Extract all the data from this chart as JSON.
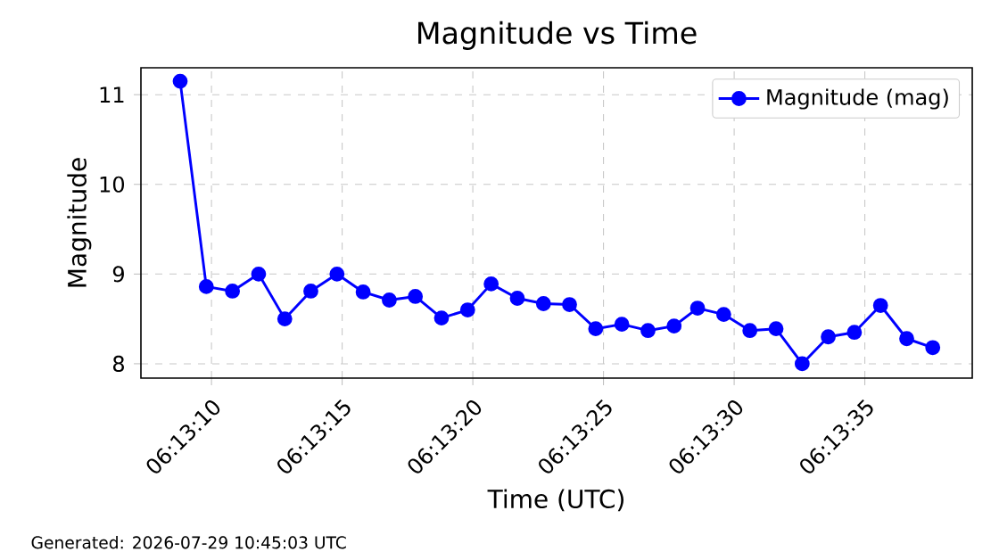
{
  "chart_data": {
    "type": "line",
    "title": "Magnitude vs Time",
    "xlabel": "Time (UTC)",
    "ylabel": "Magnitude",
    "x": [
      6.219111,
      6.219389,
      6.219667,
      6.219945,
      6.220223,
      6.2205,
      6.220778,
      6.221056,
      6.221334,
      6.221611,
      6.221889,
      6.222167,
      6.222417,
      6.222695,
      6.222973,
      6.22325,
      6.223528,
      6.223806,
      6.224084,
      6.224361,
      6.224611,
      6.224889,
      6.225167,
      6.225445,
      6.225723,
      6.226,
      6.226278,
      6.226556,
      6.226834,
      6.227111
    ],
    "series": [
      {
        "name": "Magnitude (mag)",
        "color": "#0000ff",
        "values": [
          11.15,
          8.86,
          8.81,
          9.0,
          8.5,
          8.81,
          9.0,
          8.8,
          8.71,
          8.75,
          8.51,
          8.6,
          8.89,
          8.73,
          8.67,
          8.66,
          8.39,
          8.44,
          8.37,
          8.42,
          8.62,
          8.55,
          8.37,
          8.39,
          8.0,
          8.3,
          8.35,
          8.65,
          8.28,
          8.18
        ]
      }
    ],
    "xlim": [
      6.218694,
      6.227531
    ],
    "ylim": [
      7.84,
      11.3
    ],
    "xticks": [
      {
        "value": 6.219444,
        "label": "06:13:10"
      },
      {
        "value": 6.220833,
        "label": "06:13:15"
      },
      {
        "value": 6.222222,
        "label": "06:13:20"
      },
      {
        "value": 6.223611,
        "label": "06:13:25"
      },
      {
        "value": 6.225,
        "label": "06:13:30"
      },
      {
        "value": 6.226389,
        "label": "06:13:35"
      }
    ],
    "yticks": [
      8,
      9,
      10,
      11
    ],
    "grid": true,
    "legend": "top right",
    "marker": "circle",
    "line_style": "solid",
    "annotations": [
      "Generated: 2026-07-29 10:45:03 UTC"
    ]
  }
}
